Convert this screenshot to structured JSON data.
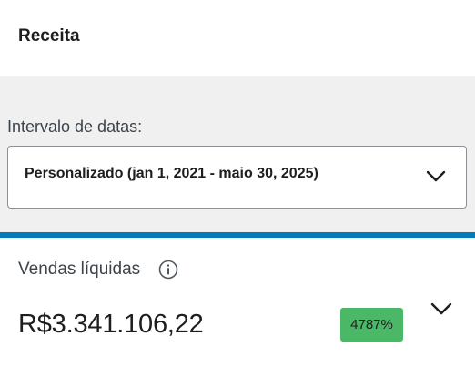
{
  "header": {
    "title": "Receita"
  },
  "filter": {
    "label": "Intervalo de datas:",
    "selected_value": "Personalizado (jan 1, 2021 - maio 30, 2025)",
    "chevron_icon": "chevron-down-icon"
  },
  "colors": {
    "accent": "#007cba",
    "badge_positive": "#4ab866",
    "panel_background": "#f0f0f0"
  },
  "metric": {
    "label": "Vendas líquidas",
    "info_icon": "info-icon",
    "value": "R$3.341.106,22",
    "delta": "4787%",
    "expand_icon": "chevron-down-icon"
  }
}
